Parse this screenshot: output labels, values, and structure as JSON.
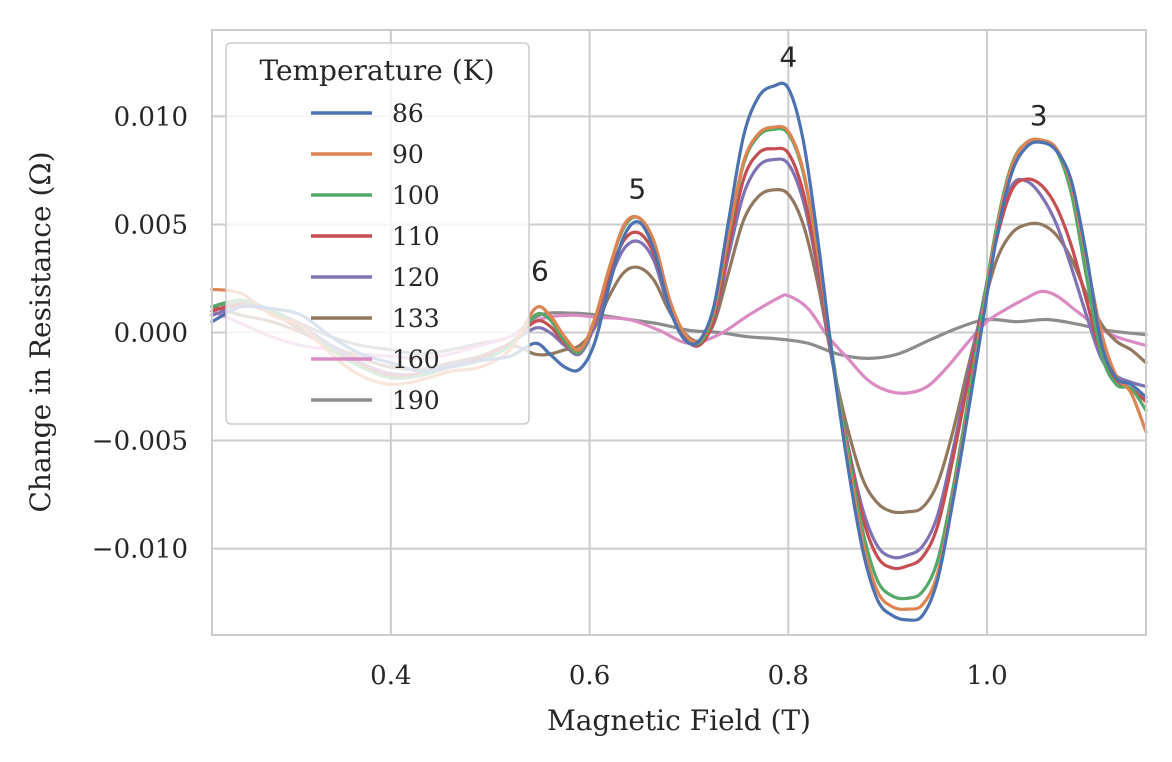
{
  "chart_data": {
    "type": "line",
    "xlabel": "Magnetic Field (T)",
    "ylabel": "Change in Resistance (Ω)",
    "xlim": [
      0.22,
      1.16
    ],
    "ylim": [
      -0.014,
      0.014
    ],
    "xticks": [
      0.4,
      0.6,
      0.8,
      1.0
    ],
    "xtick_labels": [
      "0.4",
      "0.6",
      "0.8",
      "1.0"
    ],
    "yticks": [
      0.01,
      0.005,
      0.0,
      -0.005,
      -0.01
    ],
    "ytick_labels": [
      "0.010",
      "0.005",
      "0.000",
      "−0.005",
      "−0.010"
    ],
    "grid": true,
    "legend": {
      "title": "Temperature (K)",
      "placement": "upper-left"
    },
    "annotations": [
      {
        "text": "6",
        "x": 0.55,
        "y": 0.0024
      },
      {
        "text": "5",
        "x": 0.648,
        "y": 0.0062
      },
      {
        "text": "4",
        "x": 0.8,
        "y": 0.0123
      },
      {
        "text": "3",
        "x": 1.052,
        "y": 0.0096
      }
    ],
    "series": [
      {
        "name": "86",
        "color": "#4c72b0",
        "x": [
          0.22,
          0.25,
          0.28,
          0.31,
          0.34,
          0.37,
          0.4,
          0.43,
          0.46,
          0.49,
          0.52,
          0.545,
          0.56,
          0.575,
          0.59,
          0.605,
          0.62,
          0.635,
          0.65,
          0.665,
          0.68,
          0.695,
          0.71,
          0.725,
          0.74,
          0.755,
          0.77,
          0.785,
          0.8,
          0.815,
          0.83,
          0.845,
          0.86,
          0.875,
          0.89,
          0.905,
          0.92,
          0.935,
          0.95,
          0.965,
          0.98,
          0.995,
          1.01,
          1.025,
          1.04,
          1.055,
          1.07,
          1.085,
          1.1,
          1.115,
          1.13,
          1.145,
          1.16
        ],
        "y": [
          0.0005,
          0.0012,
          0.0011,
          0.0008,
          -0.0002,
          -0.001,
          -0.0014,
          -0.0018,
          -0.0016,
          -0.0013,
          -0.0011,
          -0.0005,
          -0.001,
          -0.0016,
          -0.0017,
          -0.0005,
          0.0022,
          0.0045,
          0.0051,
          0.0038,
          0.0012,
          -0.0003,
          -0.0004,
          0.0012,
          0.0052,
          0.0091,
          0.0109,
          0.0114,
          0.0113,
          0.0089,
          0.0042,
          -0.0014,
          -0.0062,
          -0.0101,
          -0.0124,
          -0.0131,
          -0.0133,
          -0.0131,
          -0.0115,
          -0.008,
          -0.004,
          0.0003,
          0.0045,
          0.0074,
          0.0086,
          0.0088,
          0.0084,
          0.007,
          0.0036,
          -0.0005,
          -0.0021,
          -0.0024,
          -0.003
        ]
      },
      {
        "name": "90",
        "color": "#dd8452",
        "x": [
          0.22,
          0.25,
          0.28,
          0.31,
          0.34,
          0.37,
          0.4,
          0.43,
          0.46,
          0.49,
          0.52,
          0.545,
          0.56,
          0.575,
          0.59,
          0.605,
          0.62,
          0.635,
          0.65,
          0.665,
          0.68,
          0.695,
          0.71,
          0.725,
          0.74,
          0.755,
          0.77,
          0.785,
          0.8,
          0.815,
          0.83,
          0.845,
          0.86,
          0.875,
          0.89,
          0.905,
          0.92,
          0.935,
          0.95,
          0.965,
          0.98,
          0.995,
          1.01,
          1.025,
          1.04,
          1.055,
          1.07,
          1.085,
          1.1,
          1.115,
          1.13,
          1.145,
          1.16
        ],
        "y": [
          0.002,
          0.0018,
          0.0008,
          0.0003,
          -0.001,
          -0.002,
          -0.0024,
          -0.0022,
          -0.0018,
          -0.0016,
          -0.0008,
          0.0011,
          0.0008,
          -0.0002,
          -0.0008,
          0.0006,
          0.003,
          0.005,
          0.0053,
          0.0042,
          0.0016,
          0.0,
          -0.0004,
          0.001,
          0.0046,
          0.0079,
          0.0092,
          0.0095,
          0.0093,
          0.0075,
          0.0036,
          -0.0014,
          -0.0059,
          -0.0097,
          -0.012,
          -0.0127,
          -0.0128,
          -0.0126,
          -0.0112,
          -0.0078,
          -0.0038,
          0.0005,
          0.0048,
          0.0077,
          0.0088,
          0.0089,
          0.0085,
          0.0068,
          0.0034,
          0.0,
          -0.002,
          -0.0028,
          -0.0046
        ]
      },
      {
        "name": "100",
        "color": "#55a868",
        "x": [
          0.22,
          0.25,
          0.28,
          0.31,
          0.34,
          0.37,
          0.4,
          0.43,
          0.46,
          0.49,
          0.52,
          0.545,
          0.56,
          0.575,
          0.59,
          0.605,
          0.62,
          0.635,
          0.65,
          0.665,
          0.68,
          0.695,
          0.71,
          0.725,
          0.74,
          0.755,
          0.77,
          0.785,
          0.8,
          0.815,
          0.83,
          0.845,
          0.86,
          0.875,
          0.89,
          0.905,
          0.92,
          0.935,
          0.95,
          0.965,
          0.98,
          0.995,
          1.01,
          1.025,
          1.04,
          1.055,
          1.07,
          1.085,
          1.1,
          1.115,
          1.13,
          1.145,
          1.16
        ],
        "y": [
          0.0012,
          0.0015,
          0.001,
          0.0002,
          -0.0008,
          -0.0016,
          -0.0021,
          -0.002,
          -0.0016,
          -0.0013,
          -0.0006,
          0.0008,
          0.0006,
          -0.0004,
          -0.0009,
          0.0006,
          0.003,
          0.0049,
          0.0053,
          0.0041,
          0.0015,
          0.0,
          -0.0005,
          0.0009,
          0.0045,
          0.0078,
          0.0091,
          0.0094,
          0.0092,
          0.0074,
          0.0036,
          -0.0012,
          -0.0055,
          -0.0092,
          -0.0115,
          -0.0122,
          -0.0123,
          -0.012,
          -0.0106,
          -0.0074,
          -0.0034,
          0.0009,
          0.005,
          0.0078,
          0.0088,
          0.0089,
          0.0084,
          0.0064,
          0.0026,
          -0.001,
          -0.0024,
          -0.0026,
          -0.0036
        ]
      },
      {
        "name": "110",
        "color": "#c44e52",
        "x": [
          0.22,
          0.25,
          0.28,
          0.31,
          0.34,
          0.37,
          0.4,
          0.43,
          0.46,
          0.49,
          0.52,
          0.545,
          0.56,
          0.575,
          0.59,
          0.605,
          0.62,
          0.635,
          0.65,
          0.665,
          0.68,
          0.695,
          0.71,
          0.725,
          0.74,
          0.755,
          0.77,
          0.785,
          0.8,
          0.815,
          0.83,
          0.845,
          0.86,
          0.875,
          0.89,
          0.905,
          0.92,
          0.935,
          0.95,
          0.965,
          0.98,
          0.995,
          1.01,
          1.025,
          1.04,
          1.055,
          1.07,
          1.085,
          1.1,
          1.115,
          1.13,
          1.145,
          1.16
        ],
        "y": [
          0.001,
          0.0013,
          0.0009,
          0.0001,
          -0.0008,
          -0.0015,
          -0.002,
          -0.0019,
          -0.0016,
          -0.0012,
          -0.0005,
          0.0005,
          0.0003,
          -0.0005,
          -0.0009,
          0.0005,
          0.0027,
          0.0043,
          0.0046,
          0.0036,
          0.0013,
          -0.0001,
          -0.0006,
          0.0006,
          0.004,
          0.0071,
          0.0083,
          0.0085,
          0.0083,
          0.0065,
          0.003,
          -0.0014,
          -0.0053,
          -0.0086,
          -0.0104,
          -0.0109,
          -0.0108,
          -0.0104,
          -0.009,
          -0.006,
          -0.0025,
          0.001,
          0.0044,
          0.0066,
          0.0071,
          0.0068,
          0.0058,
          0.004,
          0.0015,
          -0.001,
          -0.0022,
          -0.0026,
          -0.0032
        ]
      },
      {
        "name": "120",
        "color": "#8172b3",
        "x": [
          0.22,
          0.25,
          0.28,
          0.31,
          0.34,
          0.37,
          0.4,
          0.43,
          0.46,
          0.49,
          0.52,
          0.545,
          0.56,
          0.575,
          0.59,
          0.605,
          0.62,
          0.635,
          0.65,
          0.665,
          0.68,
          0.695,
          0.71,
          0.725,
          0.74,
          0.755,
          0.77,
          0.785,
          0.8,
          0.815,
          0.83,
          0.845,
          0.86,
          0.875,
          0.89,
          0.905,
          0.92,
          0.935,
          0.95,
          0.965,
          0.98,
          0.995,
          1.01,
          1.025,
          1.04,
          1.055,
          1.07,
          1.085,
          1.1,
          1.115,
          1.13,
          1.145,
          1.16
        ],
        "y": [
          0.0008,
          0.0012,
          0.001,
          0.0003,
          -0.0006,
          -0.0014,
          -0.0019,
          -0.0019,
          -0.0015,
          -0.0012,
          -0.0005,
          0.0002,
          0.0,
          -0.0006,
          -0.001,
          0.0003,
          0.0024,
          0.0039,
          0.0042,
          0.0033,
          0.0011,
          -0.0002,
          -0.0006,
          0.0006,
          0.0036,
          0.0064,
          0.0077,
          0.008,
          0.0078,
          0.0061,
          0.0028,
          -0.0015,
          -0.0052,
          -0.0082,
          -0.0099,
          -0.0104,
          -0.0103,
          -0.0099,
          -0.0085,
          -0.0056,
          -0.0022,
          0.0012,
          0.0046,
          0.0068,
          0.007,
          0.0063,
          0.005,
          0.003,
          0.0008,
          -0.0012,
          -0.002,
          -0.0023,
          -0.0025
        ]
      },
      {
        "name": "133",
        "color": "#937860",
        "x": [
          0.22,
          0.25,
          0.28,
          0.31,
          0.34,
          0.37,
          0.4,
          0.43,
          0.46,
          0.49,
          0.52,
          0.545,
          0.56,
          0.575,
          0.59,
          0.605,
          0.62,
          0.635,
          0.65,
          0.665,
          0.68,
          0.695,
          0.71,
          0.725,
          0.74,
          0.755,
          0.77,
          0.785,
          0.8,
          0.815,
          0.83,
          0.845,
          0.86,
          0.875,
          0.89,
          0.905,
          0.92,
          0.935,
          0.95,
          0.965,
          0.98,
          0.995,
          1.01,
          1.025,
          1.04,
          1.055,
          1.07,
          1.085,
          1.1,
          1.115,
          1.13,
          1.145,
          1.16
        ],
        "y": [
          0.0012,
          0.0008,
          0.0005,
          0.0,
          -0.0006,
          -0.0012,
          -0.0016,
          -0.0017,
          -0.0014,
          -0.0011,
          -0.0006,
          -0.001,
          -0.001,
          -0.0008,
          -0.0006,
          0.0002,
          0.0017,
          0.0028,
          0.003,
          0.0024,
          0.001,
          0.0,
          -0.0004,
          0.0004,
          0.0028,
          0.0052,
          0.0063,
          0.0066,
          0.0064,
          0.005,
          0.0022,
          -0.0015,
          -0.0045,
          -0.0068,
          -0.0079,
          -0.0083,
          -0.0083,
          -0.0081,
          -0.007,
          -0.0047,
          -0.0018,
          0.001,
          0.0034,
          0.0046,
          0.005,
          0.005,
          0.0045,
          0.0034,
          0.0018,
          0.0004,
          -0.0004,
          -0.0008,
          -0.0014
        ]
      },
      {
        "name": "160",
        "color": "#da8bc3",
        "x": [
          0.22,
          0.25,
          0.28,
          0.31,
          0.34,
          0.37,
          0.4,
          0.43,
          0.46,
          0.49,
          0.52,
          0.55,
          0.58,
          0.61,
          0.64,
          0.67,
          0.7,
          0.73,
          0.76,
          0.79,
          0.8,
          0.82,
          0.84,
          0.86,
          0.88,
          0.9,
          0.92,
          0.94,
          0.96,
          0.98,
          1.0,
          1.02,
          1.04,
          1.055,
          1.07,
          1.09,
          1.11,
          1.13,
          1.16
        ],
        "y": [
          0.001,
          0.0004,
          -0.0002,
          -0.0006,
          -0.0008,
          -0.001,
          -0.0011,
          -0.0012,
          -0.001,
          -0.0006,
          -0.0002,
          0.0006,
          0.0008,
          0.0007,
          0.0006,
          0.0001,
          -0.0005,
          -0.0001,
          0.0008,
          0.0016,
          0.0017,
          0.0011,
          -0.0002,
          -0.0012,
          -0.0022,
          -0.0027,
          -0.0028,
          -0.0025,
          -0.0016,
          -0.0005,
          0.0005,
          0.0011,
          0.0016,
          0.0019,
          0.0017,
          0.001,
          0.0003,
          -0.0002,
          -0.0006
        ]
      },
      {
        "name": "190",
        "color": "#8c8c8c",
        "x": [
          0.22,
          0.25,
          0.28,
          0.31,
          0.34,
          0.37,
          0.4,
          0.43,
          0.46,
          0.49,
          0.52,
          0.55,
          0.58,
          0.61,
          0.64,
          0.67,
          0.7,
          0.73,
          0.76,
          0.79,
          0.82,
          0.85,
          0.88,
          0.91,
          0.94,
          0.97,
          1.0,
          1.03,
          1.06,
          1.09,
          1.12,
          1.16
        ],
        "y": [
          0.0012,
          0.0014,
          0.001,
          0.0004,
          -0.0002,
          -0.0006,
          -0.0008,
          -0.001,
          -0.0008,
          -0.0005,
          -0.0002,
          0.0008,
          0.0009,
          0.0008,
          0.0006,
          0.0004,
          0.0001,
          0.0,
          -0.0002,
          -0.0003,
          -0.0005,
          -0.001,
          -0.0012,
          -0.001,
          -0.0004,
          0.0002,
          0.0006,
          0.0005,
          0.0006,
          0.0004,
          0.0001,
          -0.0001
        ]
      }
    ]
  }
}
